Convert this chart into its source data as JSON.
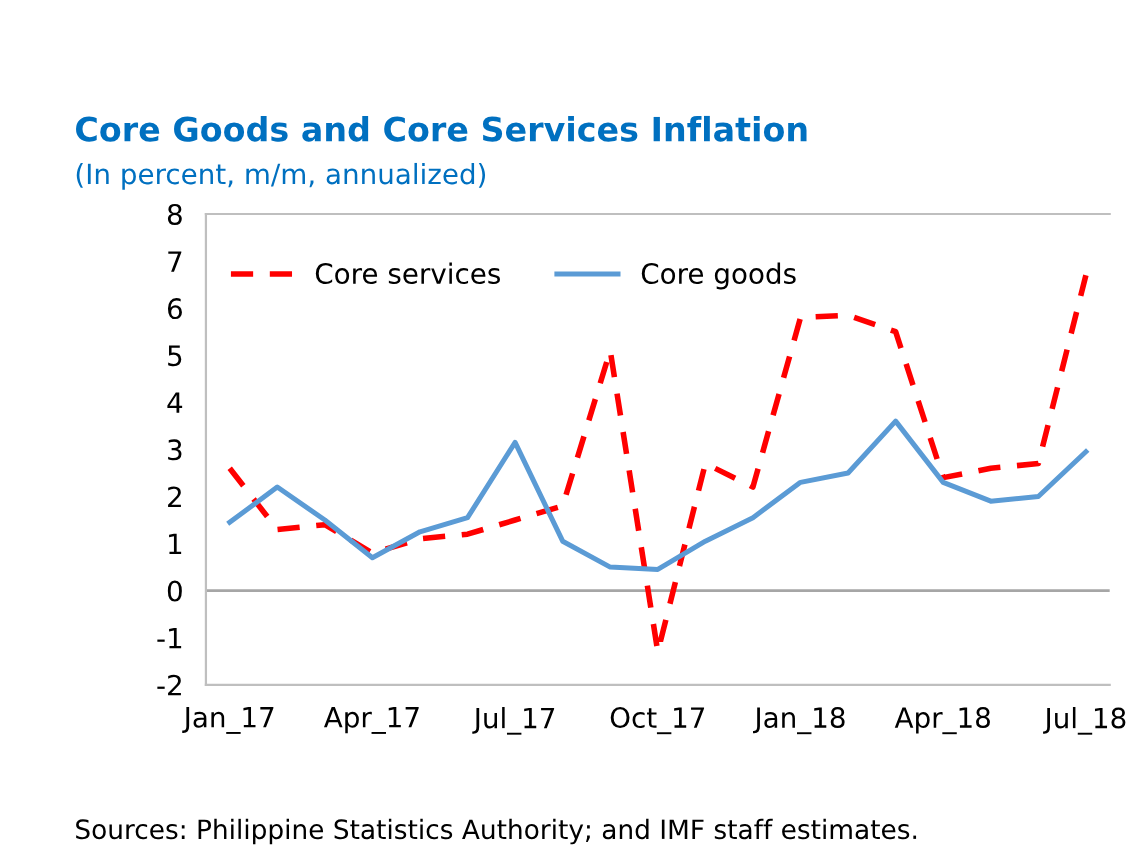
{
  "chart_data": {
    "type": "line",
    "title": "Core Goods and Core Services Inflation",
    "subtitle": "(In percent, m/m, annualized)",
    "categories": [
      "Jan_17",
      null,
      null,
      "Apr_17",
      null,
      null,
      "Jul_17",
      null,
      null,
      "Oct_17",
      null,
      null,
      "Jan_18",
      null,
      null,
      "Apr_18",
      null,
      null,
      "Jul_18"
    ],
    "series": [
      {
        "name": "Core services",
        "color": "#ff0000",
        "line_style": "dashed",
        "values": [
          2.6,
          1.3,
          1.4,
          0.8,
          1.1,
          1.2,
          1.5,
          1.8,
          5.1,
          -1.3,
          2.7,
          2.2,
          5.8,
          5.85,
          5.5,
          2.4,
          2.6,
          2.7,
          6.7
        ]
      },
      {
        "name": "Core goods",
        "color": "#5b9bd5",
        "line_style": "solid",
        "values": [
          1.45,
          2.2,
          1.5,
          0.7,
          1.25,
          1.55,
          3.15,
          1.05,
          0.5,
          0.45,
          1.05,
          1.55,
          2.3,
          2.5,
          3.6,
          2.3,
          1.9,
          2.0,
          2.95
        ]
      }
    ],
    "ylim": [
      -2,
      8
    ],
    "yticks": [
      -2,
      -1,
      0,
      1,
      2,
      3,
      4,
      5,
      6,
      7,
      8
    ],
    "grid": false,
    "legend": "top left",
    "marker": "none",
    "ref_lines": [
      {
        "axis": "y",
        "value": 0,
        "color": "#a6a6a6"
      }
    ],
    "annotations": [
      "Sources: Philippine Statistics Authority; and IMF staff estimates."
    ]
  }
}
